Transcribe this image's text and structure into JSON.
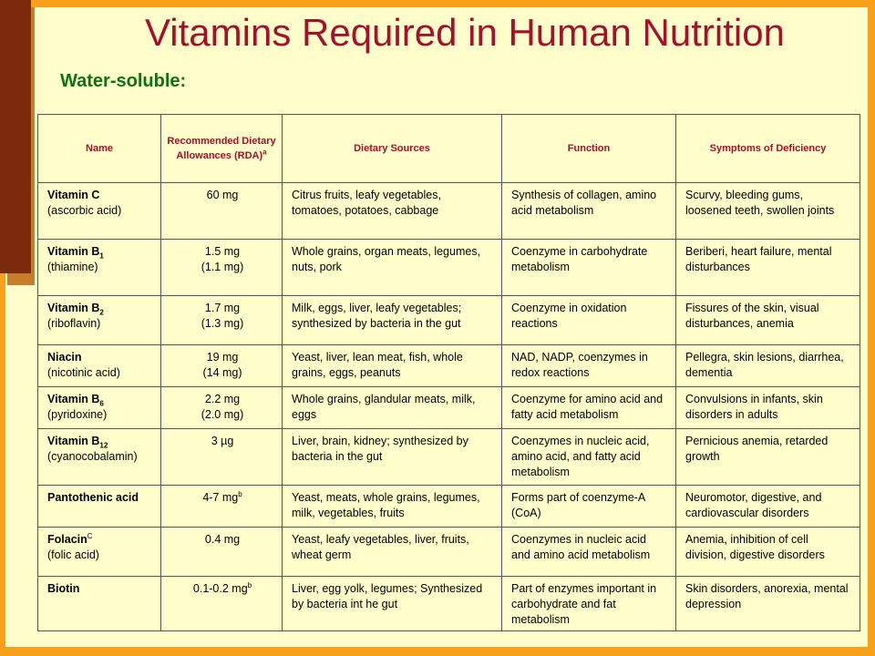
{
  "title": "Vitamins Required in Human Nutrition",
  "subtitle": "Water-soluble:",
  "headers": {
    "name": "Name",
    "rda": "Recommended Dietary Allowances (RDA)",
    "rda_sup": "a",
    "sources": "Dietary  Sources",
    "function": "Function",
    "symptoms": "Symptoms of Deficiency"
  },
  "rows": [
    {
      "name": "Vitamin C",
      "name_sub": "",
      "name_sup": "",
      "alt": "(ascorbic acid)",
      "rda": "60 mg",
      "rda2": "",
      "rda_sup": "",
      "sources": "Citrus fruits, leafy vegetables, tomatoes, potatoes, cabbage",
      "function": "Synthesis of collagen, amino acid metabolism",
      "symptoms": "Scurvy, bleeding gums, loosened teeth,  swollen joints"
    },
    {
      "name": "Vitamin B",
      "name_sub": "1",
      "name_sup": "",
      "alt": "(thiamine)",
      "rda": "1.5 mg",
      "rda2": "(1.1 mg)",
      "rda_sup": "",
      "sources": "Whole grains, organ meats, legumes, nuts, pork",
      "function": "Coenzyme in carbohydrate metabolism",
      "symptoms": "Beriberi, heart failure, mental disturbances"
    },
    {
      "name": "Vitamin B",
      "name_sub": "2",
      "name_sup": "",
      "alt": "(riboflavin)",
      "rda": "1.7 mg",
      "rda2": "(1.3 mg)",
      "rda_sup": "",
      "sources": "Milk, eggs, liver, leafy vegetables; synthesized by bacteria in the gut",
      "function": "Coenzyme in oxidation reactions",
      "symptoms": "Fissures of the skin, visual disturbances, anemia"
    },
    {
      "name": "Niacin",
      "name_sub": "",
      "name_sup": "",
      "alt": " (nicotinic acid)",
      "rda": "19 mg",
      "rda2": "(14 mg)",
      "rda_sup": "",
      "sources": "Yeast, liver, lean meat, fish, whole grains, eggs, peanuts",
      "function": "NAD, NADP, coenzymes in redox reactions",
      "symptoms": "Pellegra, skin lesions, diarrhea, dementia"
    },
    {
      "name": "Vitamin B",
      "name_sub": "6",
      "name_sup": "",
      "alt": "(pyridoxine)",
      "rda": "2.2 mg",
      "rda2": "(2.0 mg)",
      "rda_sup": "",
      "sources": "Whole grains, glandular meats, milk, eggs",
      "function": "Coenzyme for amino acid and fatty acid metabolism",
      "symptoms": "Convulsions in infants, skin disorders in adults"
    },
    {
      "name": "Vitamin B",
      "name_sub": "12",
      "name_sup": "",
      "alt": "(cyanocobalamin)",
      "rda": "3 µg",
      "rda2": "",
      "rda_sup": "",
      "sources": "Liver, brain, kidney; synthesized by bacteria in the gut",
      "function": "Coenzymes in nucleic acid, amino acid, and fatty acid metabolism",
      "symptoms": "Pernicious anemia, retarded growth"
    },
    {
      "name": "Pantothenic acid",
      "name_sub": "",
      "name_sup": "",
      "alt": "",
      "rda": "4-7 mg",
      "rda2": "",
      "rda_sup": "b",
      "sources": "Yeast, meats, whole grains, legumes, milk, vegetables, fruits",
      "function": "Forms part of coenzyme-A (CoA)",
      "symptoms": "Neuromotor, digestive, and cardiovascular disorders"
    },
    {
      "name": "Folacin",
      "name_sub": "",
      "name_sup": "C",
      "alt": "(folic acid)",
      "rda": "0.4 mg",
      "rda2": "",
      "rda_sup": "",
      "sources": "Yeast, leafy vegetables, liver, fruits, wheat germ",
      "function": "Coenzymes in nucleic acid and amino acid metabolism",
      "symptoms": "Anemia, inhibition of cell division, digestive disorders"
    },
    {
      "name": "Biotin",
      "name_sub": "",
      "name_sup": "",
      "alt": "",
      "rda": "0.1-0.2 mg",
      "rda2": "",
      "rda_sup": "b",
      "sources": "Liver, egg yolk, legumes; Synthesized by bacteria int he gut",
      "function": "Part of enzymes important in carbohydrate and fat metabolism",
      "symptoms": "Skin disorders, anorexia, mental depression"
    }
  ]
}
